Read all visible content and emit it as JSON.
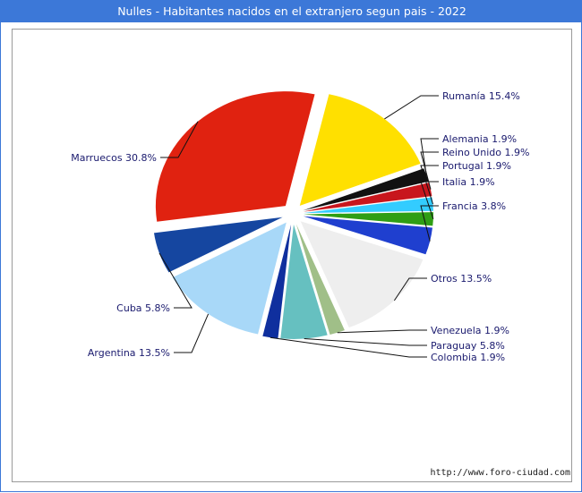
{
  "title": "Nulles - Habitantes nacidos en el extranjero segun pais - 2022",
  "footer": "http://www.foro-ciudad.com",
  "chart_data": {
    "type": "pie",
    "title": "Nulles - Habitantes nacidos en el extranjero segun pais - 2022",
    "slices": [
      {
        "name": "Rumanía",
        "label": "Rumanía 15.4%",
        "value": 15.4,
        "color": "#ffe000"
      },
      {
        "name": "Alemania",
        "label": "Alemania 1.9%",
        "value": 1.9,
        "color": "#111111"
      },
      {
        "name": "Reino Unido",
        "label": "Reino Unido 1.9%",
        "value": 1.9,
        "color": "#c8161d"
      },
      {
        "name": "Portugal",
        "label": "Portugal 1.9%",
        "value": 1.9,
        "color": "#33ccff"
      },
      {
        "name": "Italia",
        "label": "Italia 1.9%",
        "value": 1.9,
        "color": "#2f9e14"
      },
      {
        "name": "Francia",
        "label": "Francia 3.8%",
        "value": 3.8,
        "color": "#1f3fcf"
      },
      {
        "name": "Otros",
        "label": "Otros 13.5%",
        "value": 13.5,
        "color": "#eeeeee"
      },
      {
        "name": "Venezuela",
        "label": "Venezuela 1.9%",
        "value": 1.9,
        "color": "#a0bf88"
      },
      {
        "name": "Paraguay",
        "label": "Paraguay 5.8%",
        "value": 5.8,
        "color": "#66c0c0"
      },
      {
        "name": "Colombia",
        "label": "Colombia 1.9%",
        "value": 1.9,
        "color": "#0f2f9e"
      },
      {
        "name": "Argentina",
        "label": "Argentina 13.5%",
        "value": 13.5,
        "color": "#a8d8f8"
      },
      {
        "name": "Cuba",
        "label": "Cuba 5.8%",
        "value": 5.8,
        "color": "#1546a0"
      },
      {
        "name": "Marruecos",
        "label": "Marruecos 30.8%",
        "value": 30.8,
        "color": "#e02210"
      }
    ]
  }
}
